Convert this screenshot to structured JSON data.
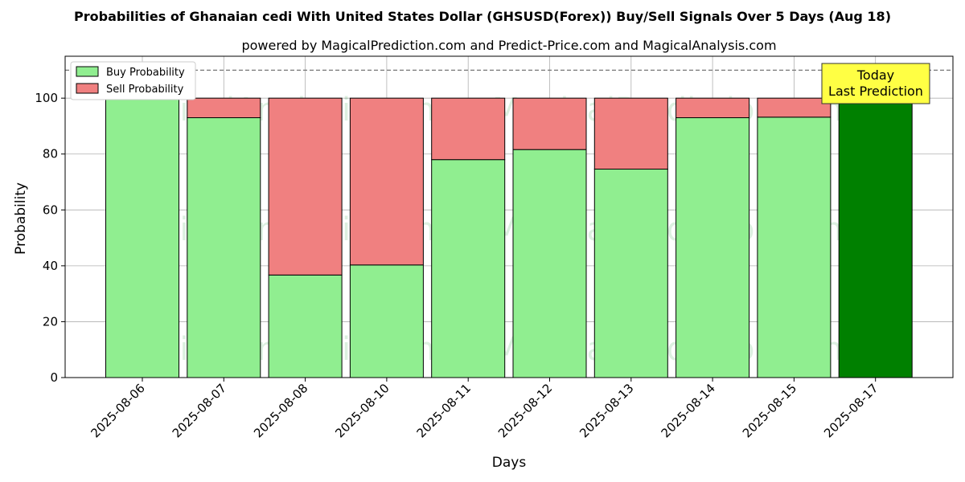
{
  "chart_data": {
    "type": "bar",
    "stacked": true,
    "title": "Probabilities of Ghanaian cedi With United States Dollar (GHSUSD(Forex)) Buy/Sell Signals Over 5 Days (Aug 18)",
    "subtitle": "powered by MagicalPrediction.com and Predict-Price.com and MagicalAnalysis.com",
    "xlabel": "Days",
    "ylabel": "Probability",
    "ylim": [
      0,
      115
    ],
    "yticks": [
      0,
      20,
      40,
      60,
      80,
      100
    ],
    "grid": true,
    "legend_position": "top-left",
    "reference_line": 110,
    "categories": [
      "2025-08-06",
      "2025-08-07",
      "2025-08-08",
      "2025-08-10",
      "2025-08-11",
      "2025-08-12",
      "2025-08-13",
      "2025-08-14",
      "2025-08-15",
      "2025-08-17"
    ],
    "series": [
      {
        "name": "Buy Probability",
        "color": "#90ee90",
        "values": [
          100,
          93,
          36.7,
          40.3,
          78,
          81.6,
          74.6,
          93,
          93.2,
          100
        ]
      },
      {
        "name": "Sell Probability",
        "color": "#f08080",
        "values": [
          0,
          7,
          63.3,
          59.7,
          22,
          18.4,
          25.4,
          7,
          6.8,
          0
        ]
      }
    ],
    "highlight": {
      "index": 9,
      "color": "#008000"
    },
    "annotation": {
      "lines": [
        "Today",
        "Last Prediction"
      ],
      "color": "#ffff44"
    },
    "watermarks": [
      "MagicalAnalysis.com",
      "MagicalPrediction.com"
    ]
  }
}
